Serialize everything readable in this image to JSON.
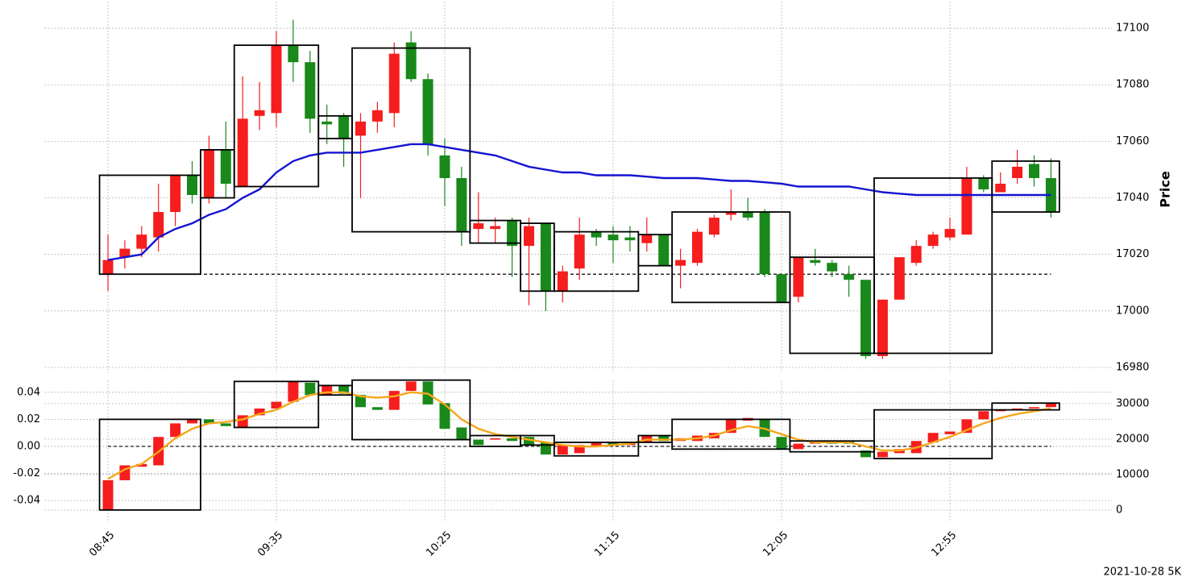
{
  "chart_data": [
    {
      "type": "candlestick",
      "ylabel": "Price",
      "y_axis_side": "right",
      "grid": true,
      "up_color": "#f51d1d",
      "down_color": "#18891a",
      "box_color": "#000000",
      "ylim": [
        16978,
        17110
      ],
      "yticks": [
        16980,
        17000,
        17020,
        17040,
        17060,
        17080,
        17100
      ],
      "open": [
        17013,
        17019,
        17022,
        17026,
        17035,
        17048,
        17040,
        17057,
        17044,
        17069,
        17070,
        17094,
        17088,
        17067,
        17069,
        17062,
        17067,
        17070,
        17095,
        17082,
        17055,
        17047,
        17029,
        17029,
        17032,
        17023,
        17031,
        17007,
        17015,
        17028,
        17027,
        17026,
        17024,
        17027,
        17016,
        17017,
        17027,
        17034,
        17035,
        17035,
        17013,
        17005,
        17018,
        17017,
        17013,
        17011,
        16984,
        17004,
        17017,
        17023,
        17026,
        17027,
        17047,
        17042,
        17047,
        17052,
        17047
      ],
      "high": [
        17027,
        17025,
        17030,
        17045,
        17048,
        17053,
        17062,
        17067,
        17083,
        17081,
        17099,
        17103,
        17092,
        17073,
        17070,
        17070,
        17074,
        17095,
        17099,
        17084,
        17061,
        17051,
        17042,
        17033,
        17033,
        17033,
        17031,
        17016,
        17033,
        17029,
        17030,
        17030,
        17033,
        17027,
        17022,
        17029,
        17034,
        17043,
        17040,
        17036,
        17013,
        17019,
        17022,
        17018,
        17016,
        17011,
        17004,
        17019,
        17025,
        17028,
        17033,
        17051,
        17048,
        17049,
        17057,
        17055,
        17054
      ],
      "low": [
        17007,
        17015,
        17019,
        17021,
        17030,
        17038,
        17038,
        17040,
        17044,
        17064,
        17065,
        17081,
        17063,
        17059,
        17051,
        17040,
        17063,
        17065,
        17081,
        17055,
        17037,
        17023,
        17024,
        17024,
        17012,
        17002,
        17000,
        17003,
        17011,
        17023,
        17017,
        17021,
        17021,
        17016,
        17008,
        17016,
        17026,
        17032,
        17032,
        17012,
        17003,
        17003,
        17016,
        17012,
        17005,
        16983,
        16983,
        17004,
        17016,
        17022,
        17025,
        17027,
        17042,
        17042,
        17045,
        17044,
        17033
      ],
      "close": [
        17018,
        17022,
        17027,
        17035,
        17048,
        17041,
        17057,
        17045,
        17068,
        17071,
        17094,
        17088,
        17068,
        17066,
        17061,
        17067,
        17071,
        17091,
        17082,
        17059,
        17047,
        17028,
        17031,
        17030,
        17023,
        17030,
        17007,
        17014,
        17027,
        17026,
        17025,
        17025,
        17027,
        17016,
        17018,
        17028,
        17033,
        17035,
        17033,
        17013,
        17003,
        17019,
        17017,
        17014,
        17011,
        16984,
        17004,
        17019,
        17023,
        17027,
        17029,
        17047,
        17043,
        17045,
        17051,
        17047,
        17035
      ],
      "series": [
        {
          "color": "#1414d2",
          "values": [
            17018,
            17019,
            17020,
            17026,
            17029,
            17031,
            17034,
            17036,
            17040,
            17043,
            17049,
            17053,
            17055,
            17056,
            17056,
            17056,
            17057,
            17058,
            17059,
            17059,
            17058,
            17057,
            17056,
            17055,
            17053,
            17051,
            17050,
            17049,
            17049,
            17048,
            17048,
            17048,
            17047.5,
            17047,
            17047,
            17047,
            17046.5,
            17046,
            17046,
            17045.5,
            17045,
            17044,
            17044,
            17044,
            17044,
            17043,
            17042,
            17041.5,
            17041,
            17041,
            17041,
            17041,
            17041,
            17041,
            17041,
            17041,
            17041
          ]
        }
      ],
      "hline": 17013,
      "boxes": [
        {
          "start": 0,
          "end": 5,
          "low": 17013,
          "high": 17048
        },
        {
          "start": 6,
          "end": 7,
          "low": 17040,
          "high": 17057
        },
        {
          "start": 8,
          "end": 12,
          "low": 17044,
          "high": 17094
        },
        {
          "start": 13,
          "end": 14,
          "low": 17061,
          "high": 17069
        },
        {
          "start": 15,
          "end": 21,
          "low": 17028,
          "high": 17093
        },
        {
          "start": 22,
          "end": 24,
          "low": 17024,
          "high": 17032
        },
        {
          "start": 25,
          "end": 26,
          "low": 17007,
          "high": 17031
        },
        {
          "start": 27,
          "end": 31,
          "low": 17007,
          "high": 17028
        },
        {
          "start": 32,
          "end": 33,
          "low": 17016,
          "high": 17027
        },
        {
          "start": 34,
          "end": 40,
          "low": 17003,
          "high": 17035
        },
        {
          "start": 41,
          "end": 45,
          "low": 16985,
          "high": 17019
        },
        {
          "start": 46,
          "end": 52,
          "low": 16985,
          "high": 17047
        },
        {
          "start": 53,
          "end": 56,
          "low": 17035,
          "high": 17053
        }
      ]
    },
    {
      "type": "candlestick",
      "grid": true,
      "up_color": "#f51d1d",
      "down_color": "#18891a",
      "box_color": "#000000",
      "categories": [
        "08:45",
        null,
        null,
        null,
        null,
        null,
        null,
        null,
        null,
        null,
        "09:35",
        null,
        null,
        null,
        null,
        null,
        null,
        null,
        null,
        null,
        "10:25",
        null,
        null,
        null,
        null,
        null,
        null,
        null,
        null,
        null,
        "11:15",
        null,
        null,
        null,
        null,
        null,
        null,
        null,
        null,
        null,
        "12:05",
        null,
        null,
        null,
        null,
        null,
        null,
        null,
        null,
        null,
        "12:55",
        null,
        null,
        null,
        null,
        null,
        null
      ],
      "ylim": [
        -0.056,
        0.05
      ],
      "yticks": [
        -0.04,
        -0.02,
        {
          "value": 0,
          "label": "0.00"
        },
        0.02,
        0.04
      ],
      "y2lim": [
        -3400,
        37000
      ],
      "y2ticks": [
        0,
        10000,
        20000,
        30000
      ],
      "open": [
        -0.047,
        -0.025,
        -0.015,
        -0.014,
        0.007,
        0.017,
        0.02,
        0.017,
        0.014,
        0.023,
        0.028,
        0.033,
        0.047,
        0.038,
        0.045,
        0.038,
        0.029,
        0.027,
        0.041,
        0.048,
        0.032,
        0.014,
        0.005,
        0.005,
        0.006,
        0.007,
        0.003,
        -0.006,
        -0.005,
        0.0,
        0.003,
        0.001,
        0.003,
        0.008,
        0.004,
        0.004,
        0.006,
        0.01,
        0.019,
        0.02,
        0.007,
        -0.002,
        0.002,
        0.004,
        0.004,
        -0.003,
        -0.008,
        -0.005,
        -0.005,
        0.003,
        0.009,
        0.01,
        0.02,
        0.026,
        0.027,
        0.028,
        0.029
      ],
      "close": [
        -0.025,
        -0.014,
        -0.013,
        0.007,
        0.017,
        0.02,
        0.017,
        0.015,
        0.023,
        0.028,
        0.033,
        0.048,
        0.038,
        0.045,
        0.039,
        0.029,
        0.027,
        0.041,
        0.048,
        0.031,
        0.013,
        0.005,
        0.001,
        0.006,
        0.004,
        0.001,
        -0.006,
        0.001,
        0.001,
        0.003,
        0.001,
        0.003,
        0.008,
        0.004,
        0.006,
        0.008,
        0.01,
        0.02,
        0.021,
        0.007,
        -0.002,
        0.002,
        0.004,
        0.002,
        0.002,
        -0.008,
        -0.004,
        -0.002,
        0.004,
        0.01,
        0.011,
        0.02,
        0.026,
        0.027,
        0.028,
        0.029,
        0.032
      ],
      "series": [
        {
          "color": "#f5a81c",
          "values": [
            -0.024,
            -0.017,
            -0.013,
            -0.004,
            0.006,
            0.013,
            0.017,
            0.018,
            0.02,
            0.024,
            0.027,
            0.033,
            0.038,
            0.04,
            0.04,
            0.037,
            0.036,
            0.037,
            0.04,
            0.039,
            0.031,
            0.02,
            0.013,
            0.009,
            0.007,
            0.005,
            0.003,
            0.001,
            0.0,
            0.0,
            0.001,
            0.002,
            0.005,
            0.005,
            0.005,
            0.006,
            0.008,
            0.012,
            0.015,
            0.013,
            0.009,
            0.005,
            0.003,
            0.003,
            0.003,
            0.0,
            -0.003,
            -0.003,
            -0.001,
            0.003,
            0.007,
            0.012,
            0.017,
            0.021,
            0.024,
            0.026,
            0.028
          ]
        }
      ],
      "hline": 0,
      "boxes": [
        {
          "start": 0,
          "end": 5,
          "low": -0.047,
          "high": 0.02
        },
        {
          "start": 8,
          "end": 12,
          "low": 0.014,
          "high": 0.048
        },
        {
          "start": 13,
          "end": 14,
          "low": 0.038,
          "high": 0.045
        },
        {
          "start": 15,
          "end": 21,
          "low": 0.005,
          "high": 0.049
        },
        {
          "start": 22,
          "end": 24,
          "low": 0,
          "high": 0.008
        },
        {
          "start": 25,
          "end": 26,
          "low": 0.001,
          "high": 0.008
        },
        {
          "start": 27,
          "end": 31,
          "low": -0.007,
          "high": 0.003
        },
        {
          "start": 32,
          "end": 33,
          "low": 0.003,
          "high": 0.008
        },
        {
          "start": 34,
          "end": 40,
          "low": -0.002,
          "high": 0.02
        },
        {
          "start": 41,
          "end": 45,
          "low": -0.004,
          "high": 0.004
        },
        {
          "start": 46,
          "end": 52,
          "low": -0.009,
          "high": 0.027
        },
        {
          "start": 53,
          "end": 56,
          "low": 0.027,
          "high": 0.032
        }
      ]
    }
  ],
  "caption": "2021-10-28 5K"
}
